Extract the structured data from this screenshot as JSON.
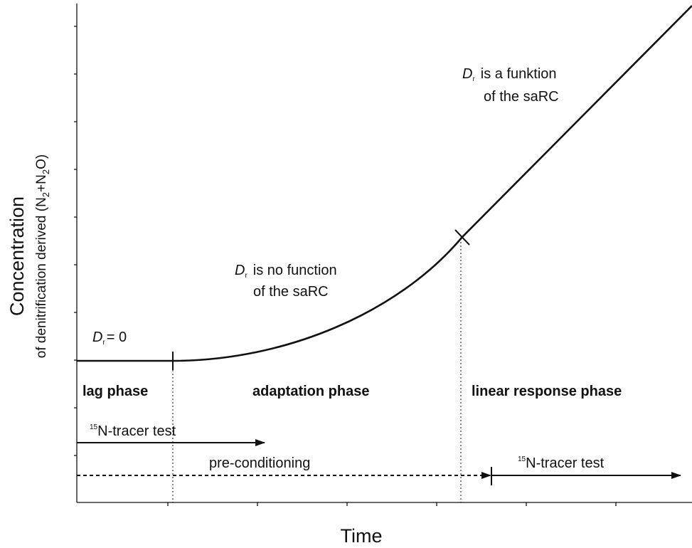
{
  "y_axis": {
    "title": "Concentration",
    "subtitle_parts": [
      "of denitrification derived (N",
      "2",
      "+N",
      "2",
      "O)"
    ]
  },
  "x_axis": {
    "title": "Time"
  },
  "annotations": {
    "lag_rate": {
      "symbol": "D",
      "subscript": "r",
      "text": "= 0"
    },
    "adaptation_rate": {
      "symbol": "D",
      "subscript": "r",
      "line1": "is no function",
      "line2": "of the saRC"
    },
    "linear_rate": {
      "symbol": "D",
      "subscript": "r",
      "line1": "is a funktion",
      "line2": "of the saRC"
    }
  },
  "phases": [
    "lag phase",
    "adaptation phase",
    "linear response phase"
  ],
  "procedures": {
    "tracer_test_1": {
      "superscript": "15",
      "text": "N-tracer test"
    },
    "preconditioning": "pre-conditioning",
    "tracer_test_2": {
      "superscript": "15",
      "text": "N-tracer test"
    }
  }
}
